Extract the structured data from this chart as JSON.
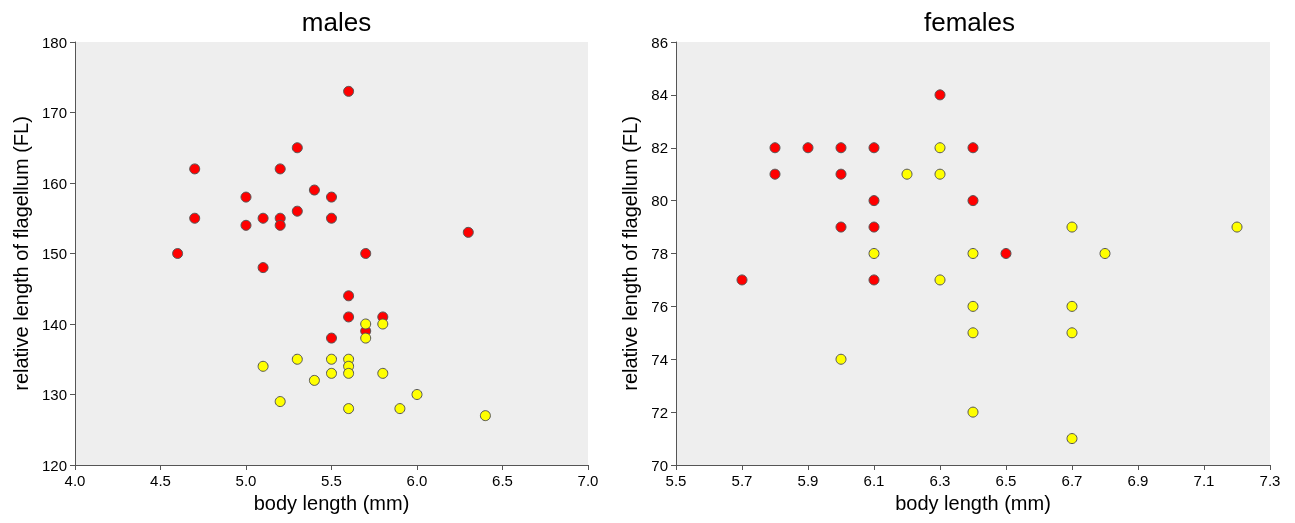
{
  "chart_data": [
    {
      "type": "scatter",
      "title": "males",
      "xlabel": "body length (mm)",
      "ylabel": "relative length of flagellum (FL)",
      "xlim": [
        4.0,
        7.0
      ],
      "ylim": [
        120,
        180
      ],
      "xticks": [
        {
          "value": 4,
          "label": "4.0"
        },
        4.5,
        {
          "value": 5,
          "label": "5.0"
        },
        5.5,
        {
          "value": 6,
          "label": "6.0"
        },
        6.5,
        {
          "value": 7,
          "label": "7.0"
        }
      ],
      "yticks": [
        120,
        130,
        140,
        150,
        160,
        170,
        180
      ],
      "grid": false,
      "marker": "circle",
      "series": [
        {
          "color": "#ff0000",
          "x": [
            4.6,
            4.7,
            4.7,
            5.0,
            5.0,
            5.1,
            5.1,
            5.2,
            5.2,
            5.2,
            5.3,
            5.3,
            5.4,
            5.5,
            5.5,
            5.5,
            5.6,
            5.6,
            5.6,
            5.7,
            5.7,
            5.8,
            6.3
          ],
          "values": [
            150,
            162,
            155,
            158,
            154,
            155,
            148,
            162,
            155,
            154,
            165,
            156,
            159,
            158,
            155,
            138,
            173,
            144,
            141,
            150,
            139,
            141,
            153
          ]
        },
        {
          "color": "#ffff00",
          "x": [
            5.1,
            5.2,
            5.3,
            5.4,
            5.5,
            5.5,
            5.6,
            5.6,
            5.6,
            5.6,
            5.7,
            5.7,
            5.8,
            5.8,
            5.9,
            6.0,
            6.4
          ],
          "values": [
            134,
            129,
            135,
            132,
            135,
            133,
            135,
            134,
            133,
            128,
            140,
            138,
            140,
            133,
            128,
            130,
            127
          ]
        }
      ]
    },
    {
      "type": "scatter",
      "title": "females",
      "xlabel": "body length (mm)",
      "ylabel": "relative length of flagellum (FL)",
      "xlim": [
        5.5,
        7.3
      ],
      "ylim": [
        70,
        86
      ],
      "xticks": [
        5.5,
        5.7,
        5.9,
        6.1,
        6.3,
        6.5,
        6.7,
        6.9,
        7.1,
        7.3
      ],
      "yticks": [
        70,
        72,
        74,
        76,
        78,
        80,
        82,
        84,
        86
      ],
      "grid": false,
      "marker": "circle",
      "series": [
        {
          "color": "#ff0000",
          "x": [
            5.7,
            5.8,
            5.8,
            5.9,
            6.0,
            6.0,
            6.0,
            6.1,
            6.1,
            6.1,
            6.1,
            6.3,
            6.4,
            6.4,
            6.5
          ],
          "values": [
            77,
            82,
            81,
            82,
            82,
            81,
            79,
            82,
            80,
            79,
            77,
            84,
            82,
            80,
            78
          ]
        },
        {
          "color": "#ffff00",
          "x": [
            6.0,
            6.1,
            6.2,
            6.3,
            6.3,
            6.3,
            6.4,
            6.4,
            6.4,
            6.4,
            6.7,
            6.7,
            6.7,
            6.7,
            6.8,
            7.2
          ],
          "values": [
            74,
            78,
            81,
            82,
            81,
            77,
            78,
            76,
            75,
            72,
            79,
            76,
            75,
            71,
            78,
            79
          ]
        }
      ]
    }
  ]
}
